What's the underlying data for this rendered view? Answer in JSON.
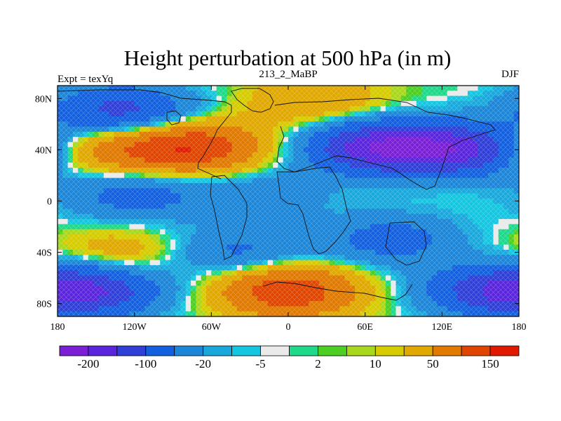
{
  "chart_data": {
    "type": "heatmap",
    "title": "Height perturbation at 500 hPa (in m)",
    "left_label": "Expt = texYq",
    "center_label": "213_2_MaBP",
    "right_label": "DJF",
    "x_range": [
      -180,
      180
    ],
    "y_range": [
      -90,
      90
    ],
    "x_ticks": [
      {
        "value": -180,
        "label": "180"
      },
      {
        "value": -120,
        "label": "120W"
      },
      {
        "value": -60,
        "label": "60W"
      },
      {
        "value": 0,
        "label": "0"
      },
      {
        "value": 60,
        "label": "60E"
      },
      {
        "value": 120,
        "label": "120E"
      },
      {
        "value": 180,
        "label": "180"
      }
    ],
    "y_ticks": [
      {
        "value": 80,
        "label": "80N"
      },
      {
        "value": 40,
        "label": "40N"
      },
      {
        "value": 0,
        "label": "0"
      },
      {
        "value": -40,
        "label": "40S"
      },
      {
        "value": -80,
        "label": "80S"
      }
    ],
    "colorbar": {
      "colors": [
        "#7a1fd6",
        "#5a25dd",
        "#2f3fd8",
        "#1260e0",
        "#1c86d8",
        "#19a8dc",
        "#15c6e0",
        "#eaeaea",
        "#1ed98a",
        "#4ccf22",
        "#a8d81c",
        "#d6cc00",
        "#e0a800",
        "#e07a00",
        "#e04500",
        "#e01a00"
      ],
      "tick_labels": [
        {
          "boundary": 1,
          "label": "-200"
        },
        {
          "boundary": 3,
          "label": "-100"
        },
        {
          "boundary": 5,
          "label": "-20"
        },
        {
          "boundary": 7,
          "label": "-5"
        },
        {
          "boundary": 9,
          "label": "2"
        },
        {
          "boundary": 11,
          "label": "10"
        },
        {
          "boundary": 13,
          "label": "50"
        },
        {
          "boundary": 15,
          "label": "150"
        }
      ]
    },
    "field_features": [
      {
        "lon": -75,
        "lat": 42,
        "value": 140
      },
      {
        "lon": -135,
        "lat": 40,
        "value": 60
      },
      {
        "lon": 165,
        "lat": 40,
        "value": 60
      },
      {
        "lon": -130,
        "lat": 70,
        "value": -120
      },
      {
        "lon": 70,
        "lat": 42,
        "value": -180
      },
      {
        "lon": 140,
        "lat": 40,
        "value": -200
      },
      {
        "lon": 20,
        "lat": 78,
        "value": 50
      },
      {
        "lon": -120,
        "lat": 5,
        "value": -70
      },
      {
        "lon": -20,
        "lat": 5,
        "value": -40
      },
      {
        "lon": 80,
        "lat": -30,
        "value": -70
      },
      {
        "lon": -40,
        "lat": -40,
        "value": -60
      },
      {
        "lon": -130,
        "lat": -40,
        "value": 40
      },
      {
        "lon": 0,
        "lat": -70,
        "value": 140
      },
      {
        "lon": -150,
        "lat": -70,
        "value": -120
      },
      {
        "lon": 160,
        "lat": -70,
        "value": -120
      }
    ]
  }
}
